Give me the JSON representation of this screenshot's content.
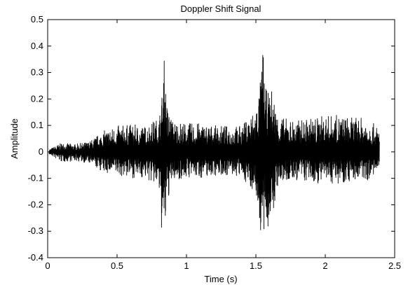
{
  "chart_data": {
    "type": "line",
    "title": "Doppler Shift Signal",
    "xlabel": "Time (s)",
    "ylabel": "Amplitude",
    "xlim": [
      0,
      2.5
    ],
    "ylim": [
      -0.4,
      0.5
    ],
    "grid": false,
    "line_color": "#000000",
    "x_ticks": [
      0,
      0.5,
      1,
      1.5,
      2,
      2.5
    ],
    "x_tick_labels": [
      "0",
      "0.5",
      "1",
      "1.5",
      "2",
      "2.5"
    ],
    "y_ticks": [
      0.5,
      0.4,
      0.3,
      0.2,
      0.1,
      0,
      -0.1,
      -0.2,
      -0.3,
      -0.4
    ],
    "y_tick_labels": [
      "0.5",
      "0.4",
      "0.3",
      "0.2",
      "0.1",
      "0",
      "-0.1",
      "-0.2",
      "-0.3",
      "-0.4"
    ],
    "series": [
      {
        "signal_start_s": 0.01,
        "signal_end_s": 2.39,
        "envelope": {
          "time_s": [
            0.01,
            0.1,
            0.2,
            0.3,
            0.4,
            0.5,
            0.6,
            0.7,
            0.8,
            0.82,
            0.84,
            0.86,
            0.9,
            1.0,
            1.1,
            1.2,
            1.3,
            1.4,
            1.5,
            1.53,
            1.55,
            1.57,
            1.6,
            1.62,
            1.65,
            1.7,
            1.8,
            1.9,
            2.0,
            2.1,
            2.2,
            2.3,
            2.39
          ],
          "upper": [
            0.01,
            0.035,
            0.03,
            0.04,
            0.08,
            0.1,
            0.105,
            0.1,
            0.13,
            0.2,
            0.36,
            0.18,
            0.12,
            0.11,
            0.11,
            0.1,
            0.1,
            0.1,
            0.17,
            0.26,
            0.41,
            0.24,
            0.22,
            0.25,
            0.15,
            0.13,
            0.12,
            0.13,
            0.14,
            0.14,
            0.13,
            0.13,
            0.09
          ],
          "lower": [
            -0.01,
            -0.04,
            -0.035,
            -0.045,
            -0.08,
            -0.09,
            -0.1,
            -0.1,
            -0.14,
            -0.3,
            -0.37,
            -0.2,
            -0.11,
            -0.1,
            -0.1,
            -0.09,
            -0.09,
            -0.1,
            -0.16,
            -0.3,
            -0.37,
            -0.33,
            -0.26,
            -0.28,
            -0.14,
            -0.12,
            -0.11,
            -0.12,
            -0.12,
            -0.12,
            -0.11,
            -0.11,
            -0.08
          ]
        }
      }
    ]
  }
}
